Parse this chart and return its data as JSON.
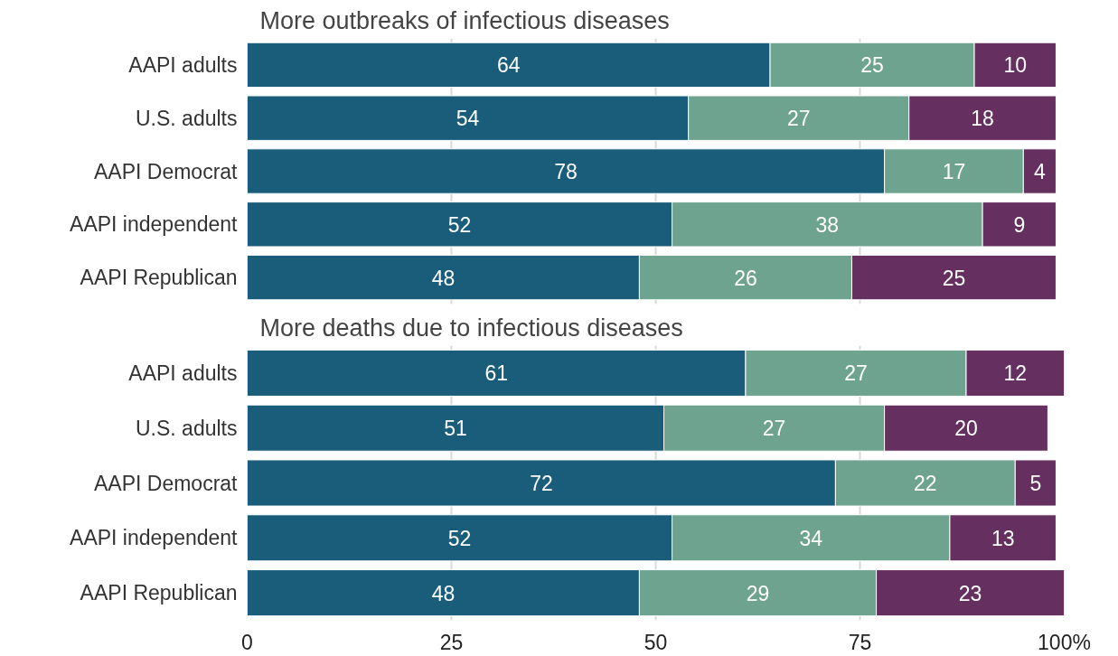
{
  "chart_data": [
    {
      "type": "bar",
      "orientation": "horizontal",
      "stacked": true,
      "title": "More outbreaks of infectious diseases",
      "categories": [
        "AAPI adults",
        "U.S. adults",
        "AAPI Democrat",
        "AAPI independent",
        "AAPI Republican"
      ],
      "series": [
        {
          "color": "#1a5d7a",
          "values": [
            64,
            54,
            78,
            52,
            48
          ]
        },
        {
          "color": "#6da38f",
          "values": [
            25,
            27,
            17,
            38,
            26
          ]
        },
        {
          "color": "#652f5f",
          "values": [
            10,
            18,
            4,
            9,
            25
          ]
        }
      ],
      "data_labels": true,
      "xlim": [
        0,
        100
      ],
      "xticks": [
        0,
        25,
        50,
        75,
        100
      ],
      "grid": "x",
      "tick_labels": "y"
    },
    {
      "type": "bar",
      "orientation": "horizontal",
      "stacked": true,
      "title": "More deaths due to infectious diseases",
      "categories": [
        "AAPI adults",
        "U.S. adults",
        "AAPI Democrat",
        "AAPI independent",
        "AAPI Republican"
      ],
      "series": [
        {
          "color": "#1a5d7a",
          "values": [
            61,
            51,
            72,
            52,
            48
          ]
        },
        {
          "color": "#6da38f",
          "values": [
            27,
            27,
            22,
            34,
            29
          ]
        },
        {
          "color": "#652f5f",
          "values": [
            12,
            20,
            5,
            13,
            23
          ]
        }
      ],
      "data_labels": true,
      "xlim": [
        0,
        100
      ],
      "xticks": [
        0,
        25,
        50,
        75,
        {
          "value": 100,
          "label": "100%"
        }
      ],
      "grid": "x"
    }
  ]
}
